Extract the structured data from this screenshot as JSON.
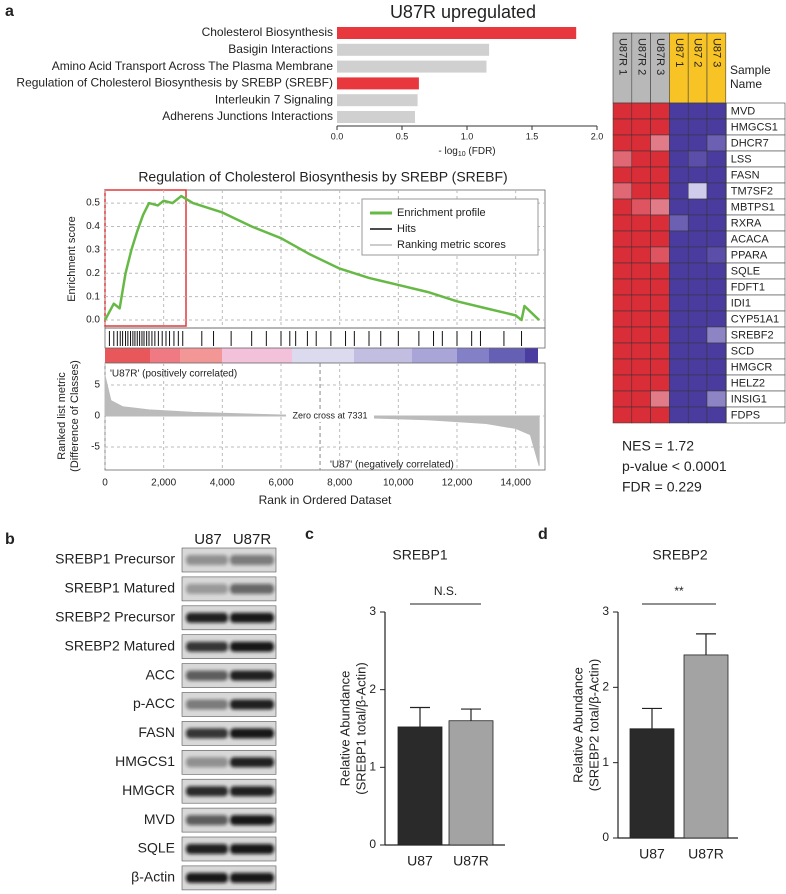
{
  "chart_data": [
    {
      "type": "hbar",
      "panel": "a",
      "title": "U87R upregulated",
      "categories": [
        "Cholesterol Biosynthesis",
        "Basigin Interactions",
        "Amino Acid Transport Across The Plasma Membrane",
        "Regulation of Cholesterol Biosynthesis by SREBP (SREBF)",
        "Interleukin 7 Signaling",
        "Adherens Junctions Interactions"
      ],
      "values": [
        1.84,
        1.17,
        1.15,
        0.63,
        0.62,
        0.6
      ],
      "colors": [
        "#e8383d",
        "#d0d0d0",
        "#d0d0d0",
        "#e8383d",
        "#d0d0d0",
        "#d0d0d0"
      ],
      "xlabel": [
        "- log",
        "10",
        " (FDR)"
      ],
      "xlim": [
        0,
        2
      ],
      "xticks": [
        {
          "value": 0,
          "label": "0.0"
        },
        {
          "value": 0.5,
          "label": "0.5"
        },
        {
          "value": 1,
          "label": "1.0"
        },
        {
          "value": 1.5,
          "label": "1.5"
        },
        {
          "value": 2,
          "label": "2.0"
        }
      ]
    },
    {
      "type": "gsea",
      "title": "Regulation of Cholesterol Biosynthesis by SREBP (SREBF)",
      "series": [
        {
          "name": "Enrichment profile",
          "color": "#67b946",
          "x": [
            0,
            300,
            500,
            700,
            900,
            1100,
            1300,
            1500,
            1800,
            2000,
            2300,
            2600,
            3000,
            4000,
            5000,
            6000,
            7000,
            8000,
            9000,
            10000,
            11000,
            12000,
            13000,
            14000,
            14200,
            14300,
            14800
          ],
          "values": [
            0,
            0.07,
            0.05,
            0.2,
            0.3,
            0.38,
            0.45,
            0.5,
            0.49,
            0.51,
            0.5,
            0.53,
            0.5,
            0.46,
            0.4,
            0.35,
            0.28,
            0.22,
            0.18,
            0.15,
            0.12,
            0.08,
            0.05,
            0.02,
            0,
            0.06,
            0
          ]
        },
        {
          "name": "Hits",
          "color": "#111111",
          "x": [
            150,
            300,
            420,
            520,
            600,
            700,
            780,
            870,
            950,
            1020,
            1100,
            1180,
            1260,
            1330,
            1420,
            1500,
            1600,
            1700,
            1820,
            1950,
            2080,
            2200,
            2350,
            2500,
            2650,
            3300,
            3700,
            4300,
            5000,
            5500,
            6000,
            6300,
            6500,
            6900,
            7200,
            7700,
            8200,
            8500,
            9000,
            9400,
            10000,
            10700,
            11200,
            11500,
            12000,
            12500,
            12800,
            13600,
            14200
          ]
        },
        {
          "name": "Ranking metric scores",
          "color": "#bbbbbb",
          "axis": "y2",
          "x": [
            0,
            0,
            200,
            600,
            1500,
            3000,
            5000,
            7331,
            9000,
            11000,
            13000,
            14000,
            14500,
            14800,
            14800
          ],
          "values": [
            0,
            6.5,
            2.5,
            1.5,
            1,
            0.6,
            0.3,
            0,
            -0.3,
            -0.6,
            -1.2,
            -2,
            -3,
            -8,
            0
          ]
        }
      ],
      "xlim": [
        0,
        15000
      ],
      "xticks": [
        0,
        {
          "value": 2000,
          "label": "2,000"
        },
        {
          "value": 4000,
          "label": "4,000"
        },
        {
          "value": 6000,
          "label": "6,000"
        },
        {
          "value": 8000,
          "label": "8,000"
        },
        {
          "value": 10000,
          "label": "10,000"
        },
        {
          "value": 12000,
          "label": "12,000"
        },
        {
          "value": 14000,
          "label": "14,000"
        }
      ],
      "ylim": [
        -0.034,
        0.556
      ],
      "yticks": [
        {
          "value": 0,
          "label": "0.0"
        },
        0.1,
        0.2,
        0.3,
        0.4,
        0.5
      ],
      "ylabel": "Enrichment score",
      "y2lim": [
        -8.7,
        8.55
      ],
      "y2ticks": [
        5,
        0,
        -5
      ],
      "y2label": [
        "Ranked list metric",
        "(Difference of Classes)"
      ],
      "xlabel": "Rank in Ordered Dataset",
      "grid": true,
      "zero_cross": 7331,
      "annotations": [
        "'U87R' (positively correlated)",
        "Zero cross at 7331",
        "'U87' (negatively correlated)"
      ]
    },
    {
      "type": "heatmap",
      "column_title": "Sample Name",
      "columns": [
        "U87R 1",
        "U87R 2",
        "U87R 3",
        "U87 1",
        "U87 2",
        "U87 3"
      ],
      "column_colors": [
        "#b8b8b8",
        "#b8b8b8",
        "#b8b8b8",
        "#f7c325",
        "#f7c325",
        "#f7c325"
      ],
      "rows": [
        "MVD",
        "HMGCS1",
        "DHCR7",
        "LSS",
        "FASN",
        "TM7SF2",
        "MBTPS1",
        "RXRA",
        "ACACA",
        "PPARA",
        "SQLE",
        "FDFT1",
        "IDI1",
        "CYP51A1",
        "SREBF2",
        "SCD",
        "HMGCR",
        "HELZ2",
        "INSIG1",
        "FDPS"
      ],
      "values": [
        [
          1,
          1,
          1,
          -1,
          -1,
          -1
        ],
        [
          1,
          1,
          1,
          -1,
          -1,
          -1
        ],
        [
          1,
          1,
          0.6,
          -1,
          -1,
          -0.8
        ],
        [
          0.7,
          1,
          1,
          -1,
          -0.9,
          -1
        ],
        [
          1,
          1,
          1,
          -1,
          -1,
          -1
        ],
        [
          0.7,
          1,
          1,
          -1,
          -0.2,
          -1
        ],
        [
          1,
          0.8,
          0.6,
          -1,
          -1,
          -1
        ],
        [
          1,
          1,
          1,
          -0.8,
          -1,
          -1
        ],
        [
          1,
          1,
          1,
          -1,
          -1,
          -1
        ],
        [
          1,
          1,
          0.8,
          -1,
          -1,
          -0.9
        ],
        [
          1,
          1,
          1,
          -1,
          -1,
          -1
        ],
        [
          1,
          1,
          1,
          -1,
          -1,
          -1
        ],
        [
          1,
          1,
          1,
          -1,
          -1,
          -1
        ],
        [
          1,
          1,
          1,
          -1,
          -1,
          -1
        ],
        [
          1,
          1,
          1,
          -1,
          -1,
          -0.6
        ],
        [
          1,
          1,
          1,
          -1,
          -1,
          -1
        ],
        [
          1,
          1,
          1,
          -1,
          -1,
          -1
        ],
        [
          1,
          1,
          1,
          -1,
          -1,
          -1
        ],
        [
          1,
          1,
          0.6,
          -1,
          -1,
          -0.6
        ],
        [
          1,
          1,
          1,
          -1,
          -1,
          -1
        ]
      ],
      "vlim": [
        -1,
        1
      ],
      "colormap": [
        "#4a3c9e",
        "#f0f0ff",
        "#d92d38"
      ],
      "stats": [
        "NES = 1.72",
        "p-value < 0.0001",
        "FDR = 0.229"
      ]
    },
    {
      "type": "bar",
      "panel": "c",
      "title": "SREBP1",
      "categories": [
        "U87",
        "U87R"
      ],
      "values": [
        1.52,
        1.6
      ],
      "errors": [
        0.25,
        0.15
      ],
      "colors": [
        "#2a2a2a",
        "#a3a3a3"
      ],
      "ylim": [
        0,
        3
      ],
      "yticks": [
        0,
        1,
        2,
        3
      ],
      "ylabel": [
        "Relative Abundance",
        "(SREBP1 total/β-Actin)"
      ],
      "significance": "N.S."
    },
    {
      "type": "bar",
      "panel": "d",
      "title": "SREBP2",
      "categories": [
        "U87",
        "U87R"
      ],
      "values": [
        1.45,
        2.43
      ],
      "errors": [
        0.27,
        0.28
      ],
      "colors": [
        "#2a2a2a",
        "#a3a3a3"
      ],
      "ylim": [
        0,
        3
      ],
      "yticks": [
        0,
        1,
        2,
        3
      ],
      "ylabel": [
        "Relative Abundance",
        "(SREBP2 total/β-Actin)"
      ],
      "significance": "**"
    }
  ],
  "blot": {
    "panel": "b",
    "columns": [
      "U87",
      "U87R"
    ],
    "rows": [
      "SREBP1 Precursor",
      "SREBP1 Matured",
      "SREBP2 Precursor",
      "SREBP2 Matured",
      "ACC",
      "p-ACC",
      "FASN",
      "HMGCS1",
      "HMGCR",
      "MVD",
      "SQLE",
      "β-Actin"
    ]
  }
}
